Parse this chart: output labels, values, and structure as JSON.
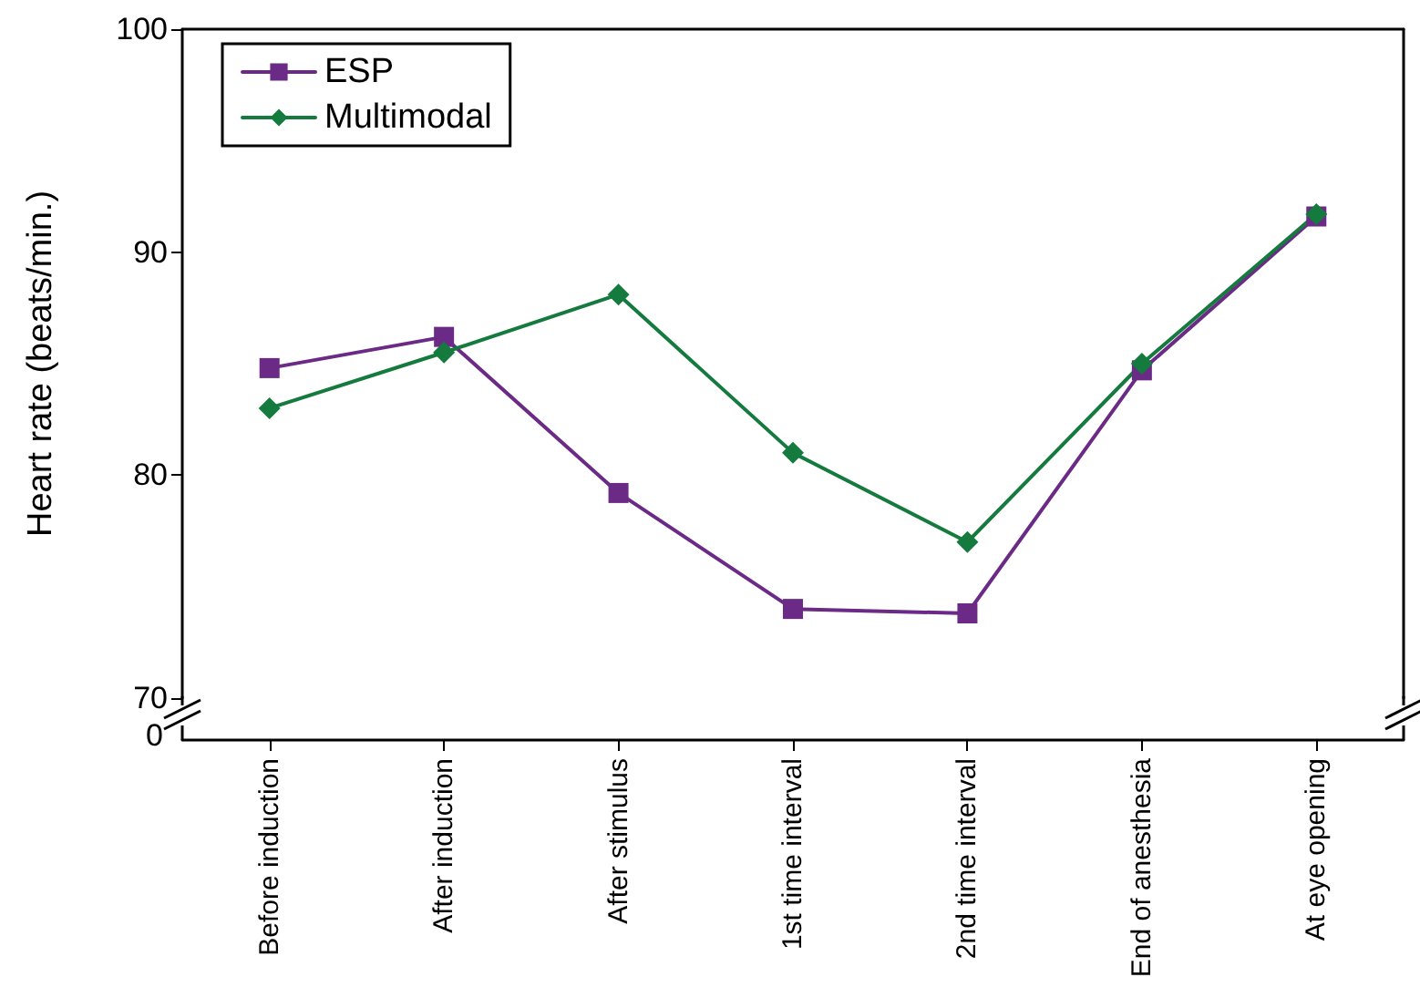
{
  "chart_data": {
    "type": "line",
    "ylabel": "Heart rate (beats/min.)",
    "categories": [
      "Before induction",
      "After induction",
      "After stimulus",
      "1st time interval",
      "2nd time interval",
      "End of anesthesia",
      "At eye opening"
    ],
    "series": [
      {
        "name": "ESP",
        "color": "#6a2a86",
        "marker": "square",
        "values": [
          84.8,
          86.2,
          79.2,
          74.0,
          73.8,
          84.7,
          91.6
        ]
      },
      {
        "name": "Multimodal",
        "color": "#157a3e",
        "marker": "diamond",
        "values": [
          83.0,
          85.5,
          88.1,
          81.0,
          77.0,
          85.0,
          91.7
        ]
      }
    ],
    "ylim": [
      70,
      100
    ],
    "yticks": [
      70,
      80,
      90,
      100
    ],
    "annotations": [
      "0"
    ],
    "grid": false,
    "legend": "top left",
    "line_style": "solid"
  }
}
